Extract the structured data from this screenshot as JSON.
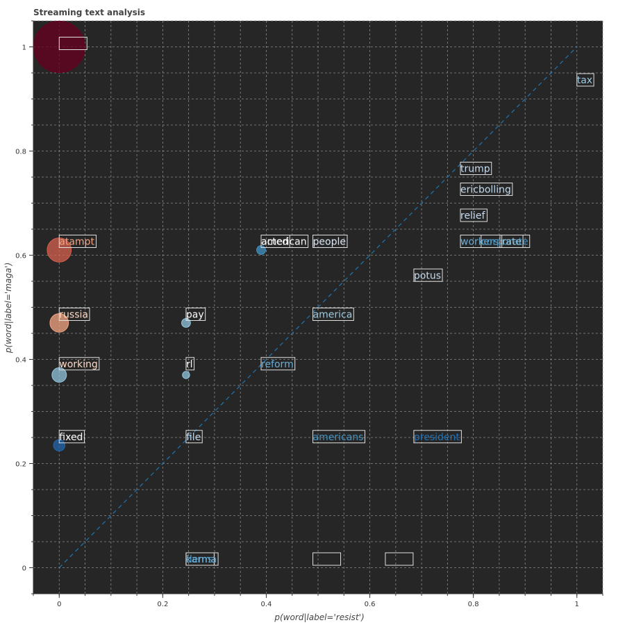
{
  "chart_data": {
    "type": "scatter",
    "title": "Streaming text analysis",
    "xlabel": "p(word|label='resist')",
    "ylabel": "p(word|label='maga')",
    "xlim": [
      -0.05,
      1.05
    ],
    "ylim": [
      -0.05,
      1.05
    ],
    "xticks": [
      0,
      0.2,
      0.4,
      0.6,
      0.8,
      1
    ],
    "yticks": [
      0,
      0.2,
      0.4,
      0.6,
      0.8,
      1
    ],
    "grid": true,
    "background": "#262626",
    "diagonal": {
      "from": [
        0,
        0
      ],
      "to": [
        1,
        1
      ],
      "color": "#1f77b4",
      "style": "dashed"
    },
    "bubbles": [
      {
        "x": 0.0,
        "y": 1.0,
        "size": 1.0,
        "color": "#67001f"
      },
      {
        "x": 0.0,
        "y": 0.61,
        "size": 0.22,
        "color": "#d6604d"
      },
      {
        "x": 0.0,
        "y": 0.47,
        "size": 0.13,
        "color": "#f4a582"
      },
      {
        "x": 0.0,
        "y": 0.37,
        "size": 0.08,
        "color": "#92c5de"
      },
      {
        "x": 0.0,
        "y": 0.235,
        "size": 0.05,
        "color": "#2166ac"
      },
      {
        "x": 0.245,
        "y": 0.47,
        "size": 0.03,
        "color": "#92c5de"
      },
      {
        "x": 0.245,
        "y": 0.37,
        "size": 0.02,
        "color": "#92c5de"
      },
      {
        "x": 0.39,
        "y": 0.61,
        "size": 0.03,
        "color": "#4393c3"
      }
    ],
    "words": [
      {
        "text": "",
        "x": 0.0,
        "y": 1.0,
        "color": "#f4a582"
      },
      {
        "text": "tax",
        "x": 1.0,
        "y": 0.93,
        "color": "#9ecae1"
      },
      {
        "text": "trump",
        "x": 0.775,
        "y": 0.76,
        "color": "#c6dbef"
      },
      {
        "text": "ericbolling",
        "x": 0.775,
        "y": 0.72,
        "color": "#c6dbef"
      },
      {
        "text": "relief",
        "x": 0.775,
        "y": 0.67,
        "color": "#c6dbef"
      },
      {
        "text": "workers",
        "x": 0.775,
        "y": 0.62,
        "color": "#6baed6"
      },
      {
        "text": "corporate",
        "x": 0.815,
        "y": 0.62,
        "color": "#4393c3"
      },
      {
        "text": "rate",
        "x": 0.855,
        "y": 0.62,
        "color": "#9ecae1"
      },
      {
        "text": "atampt",
        "x": 0.0,
        "y": 0.62,
        "color": "#f4a582"
      },
      {
        "text": "acted",
        "x": 0.39,
        "y": 0.62,
        "color": "#ffffff"
      },
      {
        "text": "american",
        "x": 0.39,
        "y": 0.62,
        "color": "#ffffff"
      },
      {
        "text": "people",
        "x": 0.49,
        "y": 0.62,
        "color": "#deebf7"
      },
      {
        "text": "potus",
        "x": 0.685,
        "y": 0.555,
        "color": "#c6dbef"
      },
      {
        "text": "russia",
        "x": 0.0,
        "y": 0.48,
        "color": "#fddbc7"
      },
      {
        "text": "pay",
        "x": 0.245,
        "y": 0.48,
        "color": "#ffffff"
      },
      {
        "text": "america",
        "x": 0.49,
        "y": 0.48,
        "color": "#9ecae1"
      },
      {
        "text": "working",
        "x": 0.0,
        "y": 0.385,
        "color": "#fddbc7"
      },
      {
        "text": "rl",
        "x": 0.245,
        "y": 0.385,
        "color": "#ffffff"
      },
      {
        "text": "reform",
        "x": 0.39,
        "y": 0.385,
        "color": "#6baed6"
      },
      {
        "text": "fixed",
        "x": 0.0,
        "y": 0.245,
        "color": "#ffffff"
      },
      {
        "text": "file",
        "x": 0.245,
        "y": 0.245,
        "color": "#c6dbef"
      },
      {
        "text": "americans",
        "x": 0.49,
        "y": 0.245,
        "color": "#4393c3"
      },
      {
        "text": "president",
        "x": 0.685,
        "y": 0.245,
        "color": "#2171b5"
      },
      {
        "text": "dems",
        "x": 0.245,
        "y": 0.01,
        "color": "#4393c3"
      },
      {
        "text": "karma",
        "x": 0.245,
        "y": 0.01,
        "color": "#6baed6"
      },
      {
        "text": "",
        "x": 0.49,
        "y": 0.01,
        "color": "#08306b"
      },
      {
        "text": "",
        "x": 0.63,
        "y": 0.01,
        "color": "#08306b"
      }
    ]
  }
}
